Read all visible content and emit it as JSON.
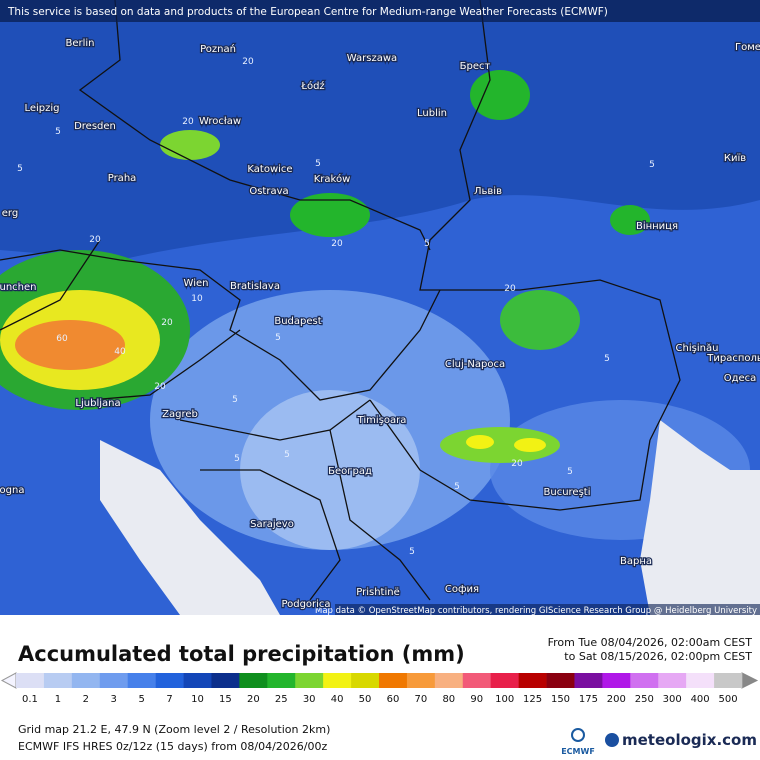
{
  "header": {
    "notice": "This service is based on data and products of the European Centre for Medium-range Weather Forecasts (ECMWF)"
  },
  "map": {
    "cities": [
      "Berlin",
      "Poznań",
      "Warszawa",
      "Брест",
      "Гоме",
      "Łódź",
      "Leipzig",
      "Dresden",
      "Wrocław",
      "Lublin",
      "Praha",
      "Katowice",
      "Kraków",
      "Ostrava",
      "Львів",
      "Київ",
      "Вінниця",
      "erg",
      "Wien",
      "Bratislava",
      "unchen",
      "Budapest",
      "Chişinău",
      "Тирасполь",
      "Одеса",
      "Cluj-Napoca",
      "Ljubljana",
      "Zagreb",
      "Timişoara",
      "Београд",
      "Bucureşti",
      "ogna",
      "Sarajevo",
      "Варна",
      "Prishtinë",
      "София",
      "Podgorica"
    ],
    "contour_labels": [
      "5",
      "5",
      "20",
      "20",
      "5",
      "20",
      "5",
      "20",
      "10",
      "20",
      "60",
      "40",
      "20",
      "5",
      "5",
      "5",
      "5",
      "20",
      "5",
      "5",
      "20",
      "5",
      "5",
      "5"
    ],
    "attribution": "Map data © OpenStreetMap contributors, rendering GIScience Research Group @ Heidelberg University"
  },
  "panel": {
    "title": "Accumulated total precipitation (mm)",
    "period_from": "From Tue 08/04/2026, 02:00am CEST",
    "period_to": "to Sat 08/15/2026, 02:00pm CEST",
    "bins": [
      {
        "label": "0.1",
        "color": "#dcdff5"
      },
      {
        "label": "1",
        "color": "#b8ccf2"
      },
      {
        "label": "2",
        "color": "#93b6f0"
      },
      {
        "label": "3",
        "color": "#6f9cee"
      },
      {
        "label": "5",
        "color": "#4680ea"
      },
      {
        "label": "7",
        "color": "#2262dc"
      },
      {
        "label": "10",
        "color": "#1346b8"
      },
      {
        "label": "15",
        "color": "#0c2f8c"
      },
      {
        "label": "20",
        "color": "#0f8f1e"
      },
      {
        "label": "25",
        "color": "#23b52c"
      },
      {
        "label": "30",
        "color": "#7cd531"
      },
      {
        "label": "40",
        "color": "#f2f214"
      },
      {
        "label": "50",
        "color": "#d8d800"
      },
      {
        "label": "60",
        "color": "#f07800"
      },
      {
        "label": "70",
        "color": "#f79a3a"
      },
      {
        "label": "80",
        "color": "#f8b080"
      },
      {
        "label": "90",
        "color": "#f25a78"
      },
      {
        "label": "100",
        "color": "#e8204a"
      },
      {
        "label": "125",
        "color": "#b80000"
      },
      {
        "label": "150",
        "color": "#8a0010"
      },
      {
        "label": "175",
        "color": "#7a0ea0"
      },
      {
        "label": "200",
        "color": "#b018e8"
      },
      {
        "label": "250",
        "color": "#d070f0"
      },
      {
        "label": "300",
        "color": "#e6a8f4"
      },
      {
        "label": "400",
        "color": "#f4e0fa"
      },
      {
        "label": "500",
        "color": "#c8c8c8"
      }
    ],
    "grid_info": "Grid map 21.2 E, 47.9 N (Zoom level 2 / Resolution 2km)",
    "model_info": "ECMWF IFS HRES 0z/12z (15 days) from  08/04/2026/00z",
    "logo_text": "ECMWF",
    "brand": "meteologix.com"
  }
}
